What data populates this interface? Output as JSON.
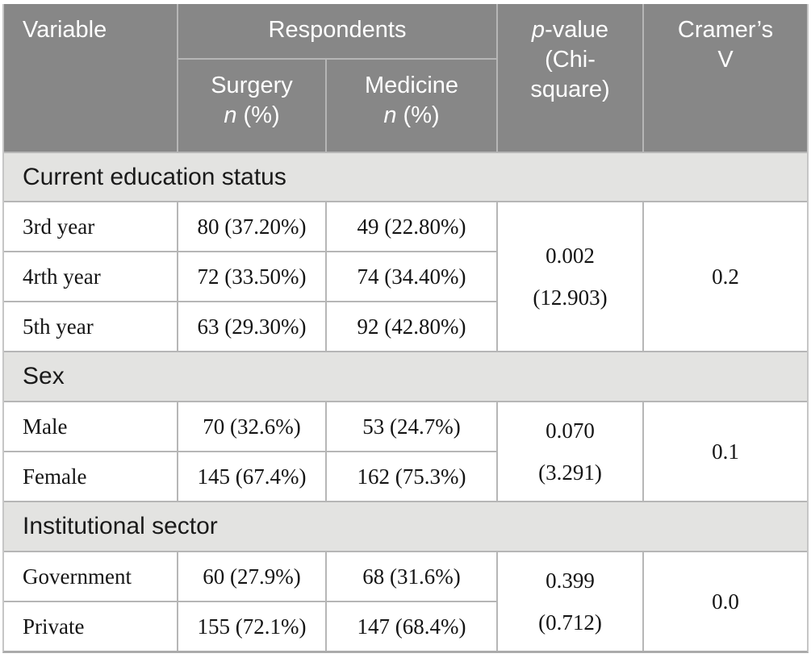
{
  "table": {
    "header": {
      "variable": "Variable",
      "respondents": "Respondents",
      "surgery": "Surgery",
      "medicine": "Medicine",
      "n_italic": "n",
      "n_rest": " (%)",
      "p_italic": "p",
      "p_rest": "-value",
      "p_line2": "(Chi-",
      "p_line3": "square)",
      "cramers_line1": "Cramer’s",
      "cramers_line2": "V"
    },
    "sections": [
      {
        "title": "Current education status",
        "rows": [
          {
            "label": "3rd year",
            "surgery": "80 (37.20%)",
            "medicine": "49 (22.80%)"
          },
          {
            "label": "4rth year",
            "surgery": "72 (33.50%)",
            "medicine": "74 (34.40%)"
          },
          {
            "label": "5th year",
            "surgery": "63 (29.30%)",
            "medicine": "92 (42.80%)"
          }
        ],
        "p_value": "0.002",
        "chi_square": "(12.903)",
        "cramers_v": "0.2"
      },
      {
        "title": "Sex",
        "rows": [
          {
            "label": "Male",
            "surgery": "70 (32.6%)",
            "medicine": "53 (24.7%)"
          },
          {
            "label": "Female",
            "surgery": "145 (67.4%)",
            "medicine": "162 (75.3%)"
          }
        ],
        "p_value": "0.070",
        "chi_square": "(3.291)",
        "cramers_v": "0.1"
      },
      {
        "title": "Institutional sector",
        "rows": [
          {
            "label": "Government",
            "surgery": "60 (27.9%)",
            "medicine": "68 (31.6%)"
          },
          {
            "label": "Private",
            "surgery": "155 (72.1%)",
            "medicine": "147 (68.4%)"
          }
        ],
        "p_value": "0.399",
        "chi_square": "(0.712)",
        "cramers_v": "0.0"
      }
    ],
    "colors": {
      "header_bg": "#878787",
      "header_text": "#ffffff",
      "section_band_bg": "#e3e3e1",
      "body_bg": "#ffffff",
      "border": "#b6b6b6",
      "bottom_rule": "#ababab",
      "body_text": "#141414"
    }
  }
}
